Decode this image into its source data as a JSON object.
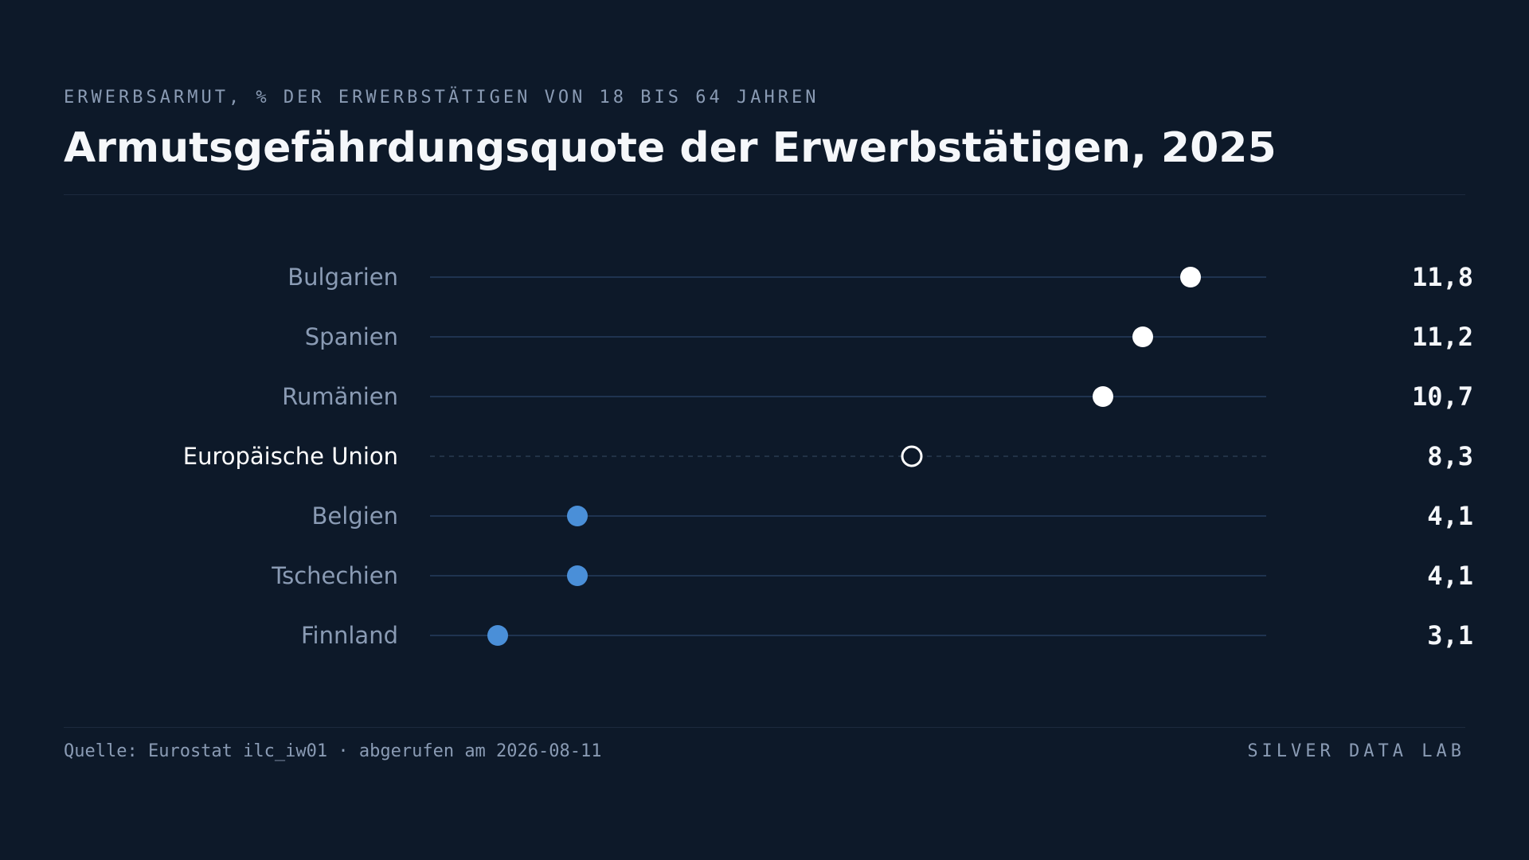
{
  "header": {
    "kicker": "ERWERBSARMUT, % DER ERWERBSTÄTIGEN VON 18 BIS 64 JAHREN",
    "title": "Armutsgefährdungsquote der Erwerbstätigen, 2025"
  },
  "footer": {
    "source": "Quelle: Eurostat ilc_iw01 · abgerufen am 2026-08-11",
    "brand": "SILVER DATA LAB"
  },
  "colors": {
    "background": "#0d1929",
    "high": "#ffffff",
    "low": "#4a8fd8",
    "track": "#1f3350",
    "label": "#8a9bb4",
    "highlight_label": "#ffffff"
  },
  "chart_data": {
    "type": "dot",
    "categories": [
      "Bulgarien",
      "Spanien",
      "Rumänien",
      "Europäische Union",
      "Belgien",
      "Tschechien",
      "Finnland"
    ],
    "values": [
      11.8,
      11.2,
      10.7,
      8.3,
      4.1,
      4.1,
      3.1
    ],
    "value_labels": [
      "11,8",
      "11,2",
      "10,7",
      "8,3",
      "4,1",
      "4,1",
      "3,1"
    ],
    "reference_category": "Europäische Union",
    "group": [
      "high",
      "high",
      "high",
      "reference",
      "low",
      "low",
      "low"
    ],
    "xlim": [
      2.25,
      12.75
    ],
    "grid": false,
    "legend": "none"
  }
}
